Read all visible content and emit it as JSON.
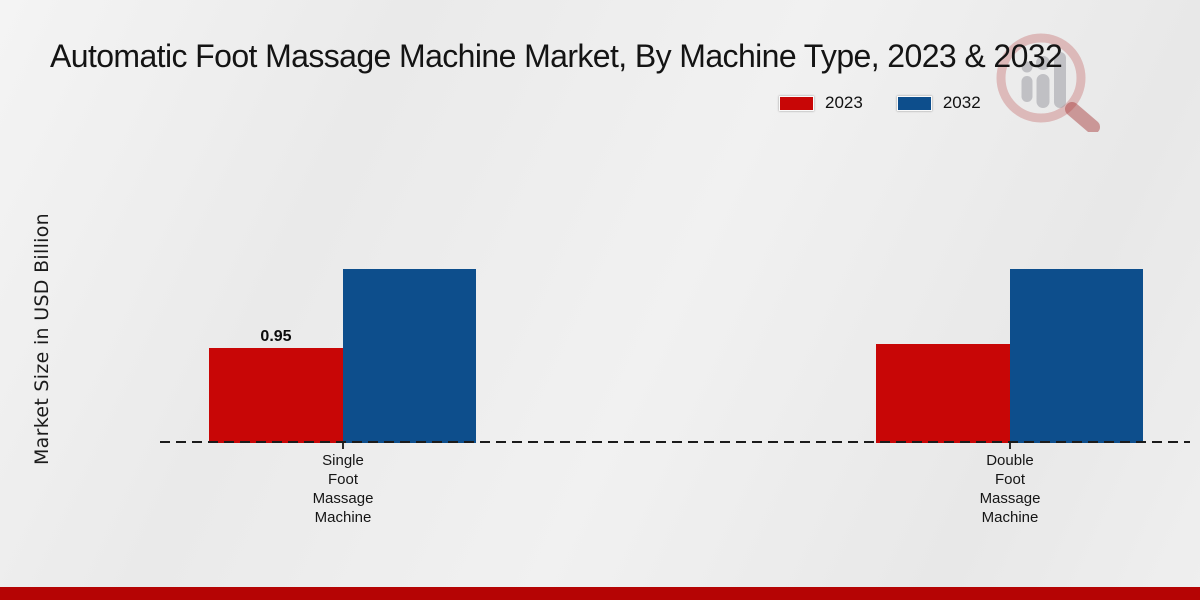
{
  "title": "Automatic Foot Massage Machine Market, By Machine Type, 2023 & 2032",
  "ylabel": "Market Size in USD Billion",
  "legend": [
    {
      "label": "2023",
      "color": "#c80606"
    },
    {
      "label": "2032",
      "color": "#0d4e8c"
    }
  ],
  "footer_color": "#b50404",
  "watermark_icon": "magnifier-bar-chart-logo",
  "chart_data": {
    "type": "bar",
    "categories": [
      "Single Foot Massage Machine",
      "Double Foot Massage Machine"
    ],
    "series": [
      {
        "name": "2023",
        "color": "#c80606",
        "values": [
          0.95,
          0.99
        ]
      },
      {
        "name": "2032",
        "color": "#0d4e8c",
        "values": [
          1.74,
          1.74
        ]
      }
    ],
    "annotations": [
      {
        "series_index": 0,
        "category_index": 0,
        "text": "0.95"
      }
    ],
    "title": "Automatic Foot Massage Machine Market, By Machine Type, 2023 & 2032",
    "xlabel": "",
    "ylabel": "Market Size in USD Billion",
    "ylim": [
      0,
      2.0
    ],
    "grid": false,
    "baseline_style": "dashed",
    "legend_position": "top-right"
  }
}
